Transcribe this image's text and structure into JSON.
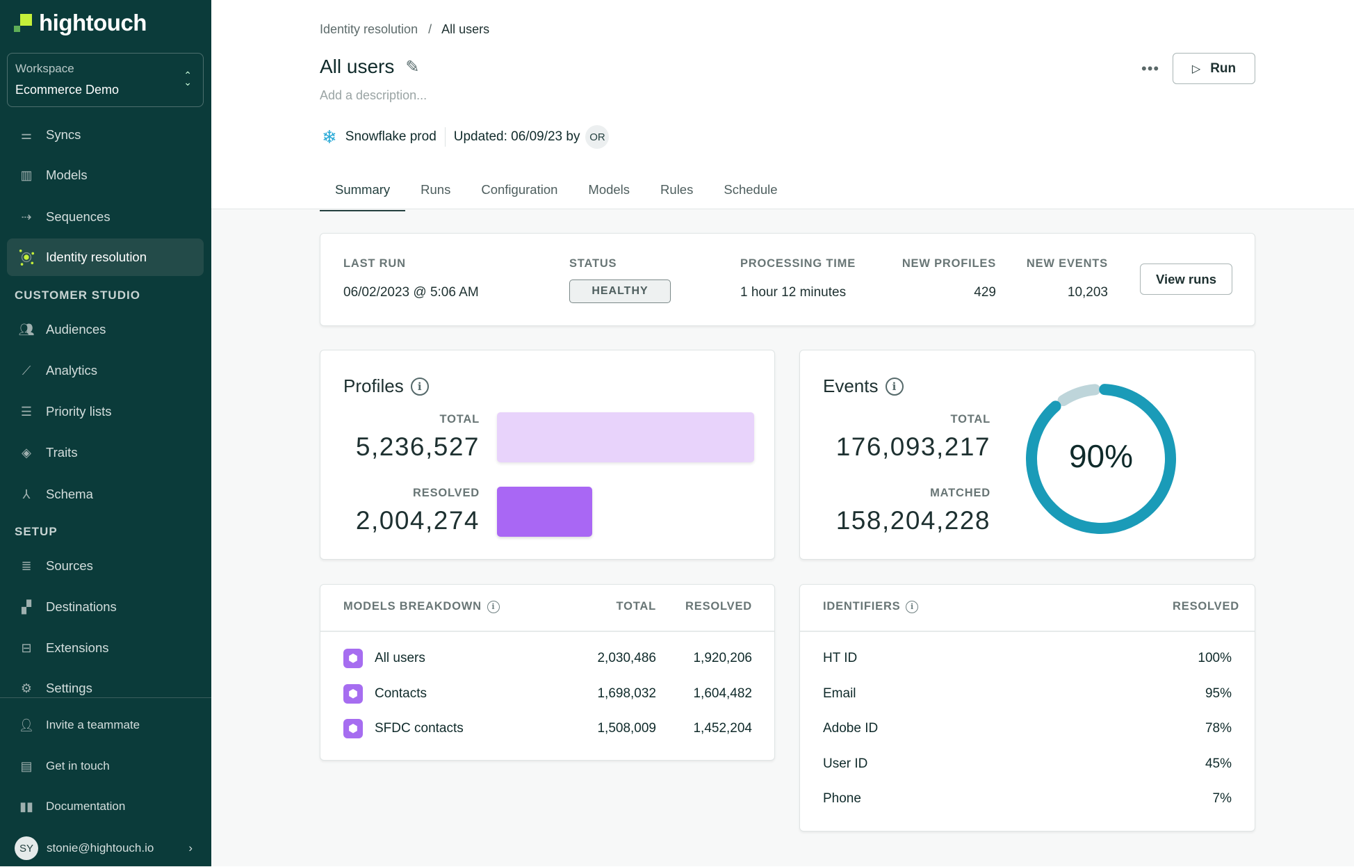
{
  "brand": {
    "name": "hightouch"
  },
  "workspace": {
    "label": "Workspace",
    "value": "Ecommerce Demo"
  },
  "sidebar": {
    "items": [
      {
        "label": "Syncs",
        "icon": "syncs-icon"
      },
      {
        "label": "Models",
        "icon": "models-icon"
      },
      {
        "label": "Sequences",
        "icon": "sequences-icon"
      },
      {
        "label": "Identity resolution",
        "icon": "identity-resolution-icon",
        "active": true
      }
    ],
    "section_studio": "CUSTOMER STUDIO",
    "studio_items": [
      {
        "label": "Audiences"
      },
      {
        "label": "Analytics"
      },
      {
        "label": "Priority lists"
      },
      {
        "label": "Traits"
      },
      {
        "label": "Schema"
      }
    ],
    "section_setup": "SETUP",
    "setup_items": [
      {
        "label": "Sources"
      },
      {
        "label": "Destinations"
      },
      {
        "label": "Extensions"
      },
      {
        "label": "Settings"
      }
    ],
    "footer": [
      {
        "label": "Invite a teammate"
      },
      {
        "label": "Get in touch"
      },
      {
        "label": "Documentation"
      }
    ],
    "user": {
      "initials": "SY",
      "email": "stonie@hightouch.io"
    }
  },
  "breadcrumb": {
    "parent": "Identity resolution",
    "sep": "/",
    "current": "All users"
  },
  "header": {
    "title": "All users",
    "description_placeholder": "Add a description...",
    "source": "Snowflake prod",
    "updated": "Updated: 06/09/23 by",
    "updated_by": "OR",
    "more": "•••",
    "run_label": "Run"
  },
  "tabs": [
    "Summary",
    "Runs",
    "Configuration",
    "Models",
    "Rules",
    "Schedule"
  ],
  "last_run": {
    "last_run_label": "LAST RUN",
    "last_run": "06/02/2023 @ 5:06 AM",
    "status_label": "STATUS",
    "status": "HEALTHY",
    "processing_label": "PROCESSING TIME",
    "processing": "1 hour 12 minutes",
    "new_profiles_label": "NEW PROFILES",
    "new_profiles": "429",
    "new_events_label": "NEW EVENTS",
    "new_events": "10,203",
    "view_runs": "View runs"
  },
  "profiles": {
    "title": "Profiles",
    "total_label": "TOTAL",
    "total": "5,236,527",
    "resolved_label": "RESOLVED",
    "resolved": "2,004,274",
    "total_value": 5236527,
    "resolved_value": 2004274,
    "colors": {
      "total": "#e8d3fb",
      "resolved": "#a967f4"
    }
  },
  "events": {
    "title": "Events",
    "total_label": "TOTAL",
    "total": "176,093,217",
    "matched_label": "MATCHED",
    "matched": "158,204,228",
    "percent": "90%",
    "fraction": 0.9,
    "colors": {
      "matched": "#1a9bb8",
      "rest": "#bed5da"
    }
  },
  "models_breakdown": {
    "title": "MODELS BREAKDOWN",
    "col_total": "TOTAL",
    "col_resolved": "RESOLVED",
    "rows": [
      {
        "name": "All users",
        "total": "2,030,486",
        "resolved": "1,920,206"
      },
      {
        "name": "Contacts",
        "total": "1,698,032",
        "resolved": "1,604,482"
      },
      {
        "name": "SFDC contacts",
        "total": "1,508,009",
        "resolved": "1,452,204"
      }
    ]
  },
  "identifiers": {
    "title": "IDENTIFIERS",
    "col_resolved": "RESOLVED",
    "rows": [
      {
        "name": "HT ID",
        "resolved": "100%"
      },
      {
        "name": "Email",
        "resolved": "95%"
      },
      {
        "name": "Adobe ID",
        "resolved": "78%"
      },
      {
        "name": "User ID",
        "resolved": "45%"
      },
      {
        "name": "Phone",
        "resolved": "7%"
      }
    ]
  }
}
